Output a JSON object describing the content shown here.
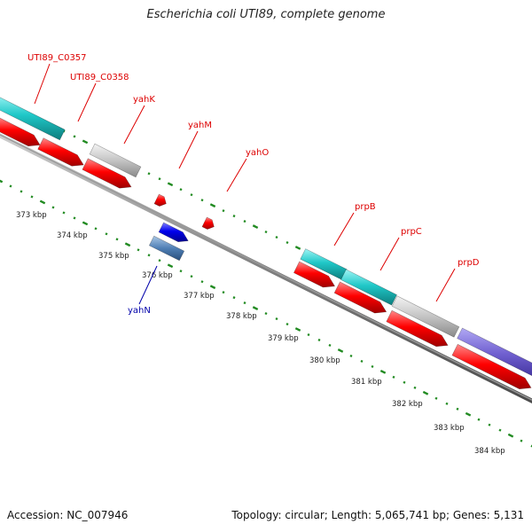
{
  "title": "Escherichia coli UTI89, complete genome",
  "footer": {
    "accession": "Accession: NC_007946",
    "summary": "Topology: circular; Length: 5,065,741 bp; Genes: 5,131"
  },
  "colors": {
    "tick": "#228B22",
    "backbone": "#777777",
    "cds_red": "#ff0000",
    "cds_blue": "#0000ee",
    "gene_cyan": "#20c8c8",
    "gene_gray": "#c0c0c0",
    "gene_purple": "#7060d0",
    "gene_steel": "#4f7fb5",
    "label_red": "#dd0000",
    "label_blue": "#0000aa"
  },
  "scale_labels": [
    "373 kbp",
    "374 kbp",
    "375 kbp",
    "376 kbp",
    "377 kbp",
    "378 kbp",
    "379 kbp",
    "380 kbp",
    "381 kbp",
    "382 kbp",
    "383 kbp",
    "384 kbp"
  ],
  "gene_labels": [
    {
      "text": "UTI89_C0357",
      "color": "red"
    },
    {
      "text": "UTI89_C0358",
      "color": "red"
    },
    {
      "text": "yahK",
      "color": "red"
    },
    {
      "text": "yahM",
      "color": "red"
    },
    {
      "text": "yahO",
      "color": "red"
    },
    {
      "text": "prpB",
      "color": "red"
    },
    {
      "text": "prpC",
      "color": "red"
    },
    {
      "text": "prpD",
      "color": "red"
    },
    {
      "text": "yahN",
      "color": "blue"
    }
  ]
}
